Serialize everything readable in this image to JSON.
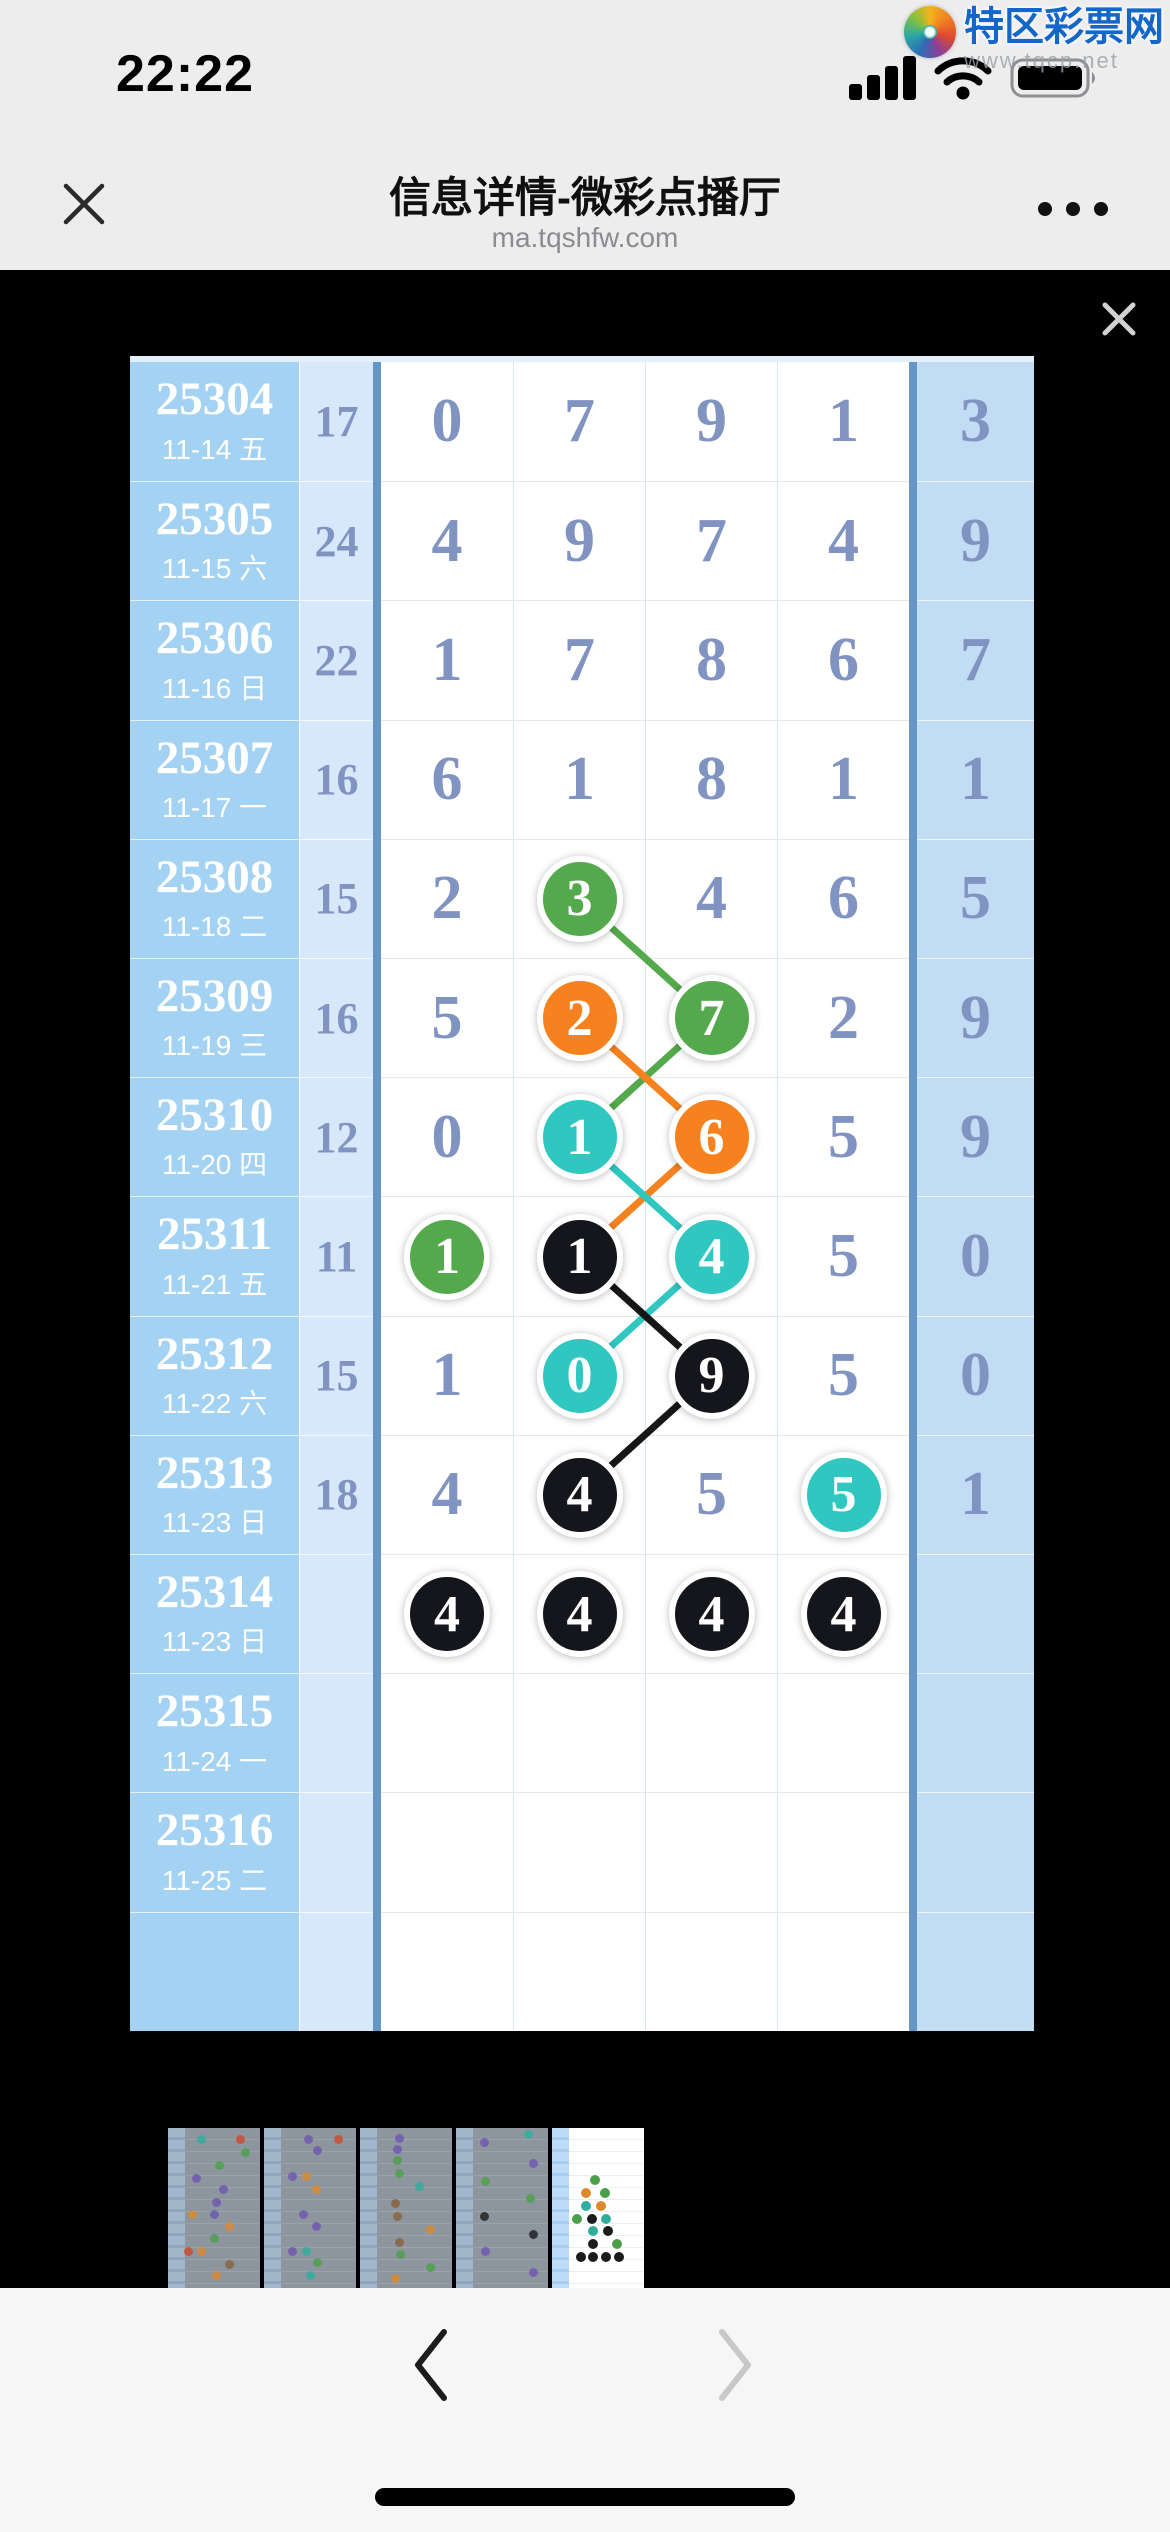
{
  "status_bar": {
    "time": "22:22"
  },
  "watermark": {
    "name": "特区彩票网",
    "url": "www.tqcp.net"
  },
  "header": {
    "title": "信息详情-微彩点播厅",
    "url": "ma.tqshfw.com"
  },
  "icons": {
    "status": [
      "cellular-signal",
      "wifi",
      "battery"
    ],
    "nav_close": "x-close",
    "nav_more": "ellipsis-menu",
    "viewer_close": "x-close",
    "footer": [
      "chevron-left",
      "chevron-right"
    ]
  },
  "chart": {
    "rows": [
      {
        "period": "25304",
        "date": "11-14 五",
        "sum": "17",
        "digits": [
          "0",
          "7",
          "9",
          "1"
        ],
        "tail": "3"
      },
      {
        "period": "25305",
        "date": "11-15 六",
        "sum": "24",
        "digits": [
          "4",
          "9",
          "7",
          "4"
        ],
        "tail": "9"
      },
      {
        "period": "25306",
        "date": "11-16 日",
        "sum": "22",
        "digits": [
          "1",
          "7",
          "8",
          "6"
        ],
        "tail": "7"
      },
      {
        "period": "25307",
        "date": "11-17 一",
        "sum": "16",
        "digits": [
          "6",
          "1",
          "8",
          "1"
        ],
        "tail": "1"
      },
      {
        "period": "25308",
        "date": "11-18 二",
        "sum": "15",
        "digits": [
          "2",
          "3",
          "4",
          "6"
        ],
        "tail": "5",
        "circles": {
          "1": "green"
        }
      },
      {
        "period": "25309",
        "date": "11-19 三",
        "sum": "16",
        "digits": [
          "5",
          "2",
          "7",
          "2"
        ],
        "tail": "9",
        "circles": {
          "1": "orange",
          "2": "green"
        }
      },
      {
        "period": "25310",
        "date": "11-20 四",
        "sum": "12",
        "digits": [
          "0",
          "1",
          "6",
          "5"
        ],
        "tail": "9",
        "circles": {
          "1": "teal",
          "2": "orange"
        }
      },
      {
        "period": "25311",
        "date": "11-21 五",
        "sum": "11",
        "digits": [
          "1",
          "1",
          "4",
          "5"
        ],
        "tail": "0",
        "circles": {
          "0": "green",
          "1": "black",
          "2": "teal"
        }
      },
      {
        "period": "25312",
        "date": "11-22 六",
        "sum": "15",
        "digits": [
          "1",
          "0",
          "9",
          "5"
        ],
        "tail": "0",
        "circles": {
          "1": "teal",
          "2": "black"
        }
      },
      {
        "period": "25313",
        "date": "11-23 日",
        "sum": "18",
        "digits": [
          "4",
          "4",
          "5",
          "5"
        ],
        "tail": "1",
        "circles": {
          "1": "black",
          "3": "teal"
        }
      },
      {
        "period": "25314",
        "date": "11-23 日",
        "sum": "",
        "digits": [
          "4",
          "4",
          "4",
          "4"
        ],
        "tail": "",
        "circles": {
          "0": "black",
          "1": "black",
          "2": "black",
          "3": "black"
        }
      },
      {
        "period": "25315",
        "date": "11-24 一",
        "sum": "",
        "digits": [
          "",
          "",
          "",
          ""
        ],
        "tail": ""
      },
      {
        "period": "25316",
        "date": "11-25 二",
        "sum": "",
        "digits": [
          "",
          "",
          "",
          ""
        ],
        "tail": ""
      },
      {
        "period": "",
        "date": "",
        "sum": "",
        "digits": [
          "",
          "",
          "",
          ""
        ],
        "tail": ""
      }
    ],
    "lines": [
      {
        "color": "green",
        "from": [
          4,
          1
        ],
        "to": [
          5,
          2
        ]
      },
      {
        "color": "green",
        "from": [
          5,
          2
        ],
        "to": [
          6,
          1
        ]
      },
      {
        "color": "orange",
        "from": [
          5,
          1
        ],
        "to": [
          6,
          2
        ]
      },
      {
        "color": "orange",
        "from": [
          6,
          2
        ],
        "to": [
          7,
          1
        ]
      },
      {
        "color": "teal",
        "from": [
          6,
          1
        ],
        "to": [
          7,
          2
        ]
      },
      {
        "color": "teal",
        "from": [
          7,
          2
        ],
        "to": [
          8,
          1
        ]
      },
      {
        "color": "black",
        "from": [
          7,
          1
        ],
        "to": [
          8,
          2
        ]
      },
      {
        "color": "black",
        "from": [
          8,
          2
        ],
        "to": [
          9,
          1
        ]
      }
    ],
    "palette": {
      "green": "#55a94d",
      "orange": "#f5821f",
      "teal": "#2fc7c0",
      "black": "#161616"
    }
  },
  "thumb_palette": {
    "p": "#6e55b0",
    "r": "#d0472a",
    "g": "#4c9f4a",
    "t": "#2fae9e",
    "o": "#dd8a2c",
    "b": "#1c1c1c",
    "br": "#8a5f3a"
  },
  "thumbnails": [
    {
      "active": false,
      "dots": [
        [
          0.36,
          0.07,
          "t"
        ],
        [
          0.78,
          0.07,
          "r"
        ],
        [
          0.84,
          0.15,
          "g"
        ],
        [
          0.55,
          0.23,
          "g"
        ],
        [
          0.3,
          0.31,
          "p"
        ],
        [
          0.6,
          0.38,
          "p"
        ],
        [
          0.52,
          0.46,
          "p"
        ],
        [
          0.26,
          0.54,
          "o"
        ],
        [
          0.5,
          0.54,
          "p"
        ],
        [
          0.66,
          0.61,
          "o"
        ],
        [
          0.5,
          0.69,
          "g"
        ],
        [
          0.22,
          0.77,
          "r"
        ],
        [
          0.36,
          0.77,
          "o"
        ],
        [
          0.66,
          0.85,
          "br"
        ],
        [
          0.52,
          0.92,
          "o"
        ]
      ]
    },
    {
      "active": false,
      "dots": [
        [
          0.48,
          0.07,
          "p"
        ],
        [
          0.8,
          0.07,
          "r"
        ],
        [
          0.58,
          0.14,
          "p"
        ],
        [
          0.3,
          0.3,
          "p"
        ],
        [
          0.46,
          0.3,
          "o"
        ],
        [
          0.56,
          0.38,
          "o"
        ],
        [
          0.42,
          0.54,
          "p"
        ],
        [
          0.56,
          0.61,
          "p"
        ],
        [
          0.3,
          0.77,
          "p"
        ],
        [
          0.46,
          0.77,
          "t"
        ],
        [
          0.58,
          0.84,
          "g"
        ],
        [
          0.5,
          0.92,
          "t"
        ]
      ]
    },
    {
      "active": false,
      "dots": [
        [
          0.42,
          0.06,
          "p"
        ],
        [
          0.4,
          0.13,
          "p"
        ],
        [
          0.4,
          0.2,
          "g"
        ],
        [
          0.42,
          0.28,
          "g"
        ],
        [
          0.64,
          0.36,
          "t"
        ],
        [
          0.38,
          0.47,
          "br"
        ],
        [
          0.4,
          0.55,
          "br"
        ],
        [
          0.76,
          0.63,
          "o"
        ],
        [
          0.42,
          0.71,
          "br"
        ],
        [
          0.44,
          0.79,
          "g"
        ],
        [
          0.76,
          0.87,
          "g"
        ],
        [
          0.38,
          0.94,
          "o"
        ]
      ]
    },
    {
      "active": false,
      "dots": [
        [
          0.78,
          0.04,
          "t"
        ],
        [
          0.3,
          0.09,
          "p"
        ],
        [
          0.84,
          0.22,
          "p"
        ],
        [
          0.32,
          0.33,
          "g"
        ],
        [
          0.8,
          0.44,
          "g"
        ],
        [
          0.3,
          0.55,
          "b"
        ],
        [
          0.84,
          0.66,
          "b"
        ],
        [
          0.32,
          0.77,
          "p"
        ],
        [
          0.84,
          0.9,
          "p"
        ]
      ]
    },
    {
      "active": true,
      "dots": [
        [
          0.46,
          0.32,
          "g"
        ],
        [
          0.36,
          0.4,
          "o"
        ],
        [
          0.56,
          0.4,
          "g"
        ],
        [
          0.36,
          0.48,
          "t"
        ],
        [
          0.52,
          0.48,
          "o"
        ],
        [
          0.26,
          0.56,
          "g"
        ],
        [
          0.42,
          0.56,
          "b"
        ],
        [
          0.58,
          0.56,
          "t"
        ],
        [
          0.44,
          0.64,
          "t"
        ],
        [
          0.6,
          0.64,
          "b"
        ],
        [
          0.44,
          0.72,
          "b"
        ],
        [
          0.7,
          0.72,
          "g"
        ],
        [
          0.3,
          0.8,
          "b"
        ],
        [
          0.44,
          0.8,
          "b"
        ],
        [
          0.58,
          0.8,
          "b"
        ],
        [
          0.72,
          0.8,
          "b"
        ]
      ]
    }
  ]
}
